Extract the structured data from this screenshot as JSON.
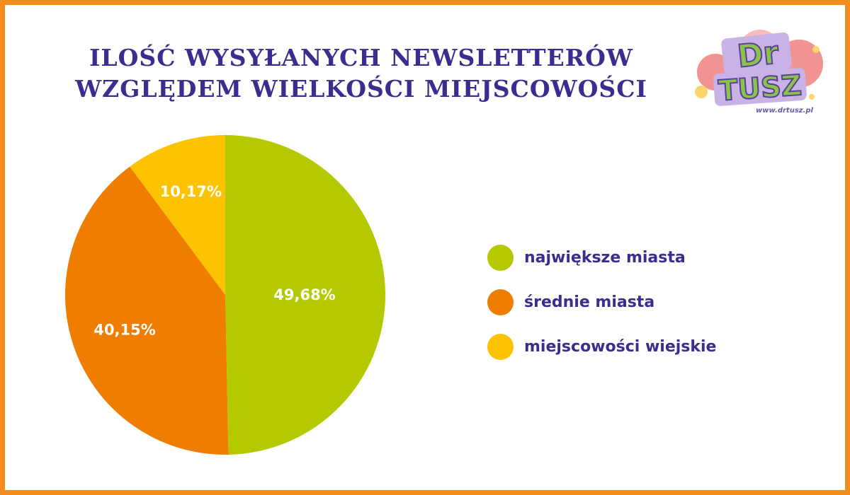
{
  "header": {
    "title_line1": "ILOŚĆ WYSYŁANYCH NEWSLETTERÓW",
    "title_line2": "WZGLĘDEM WIELKOŚCI MIEJSCOWOŚCI"
  },
  "logo": {
    "text_top": "Dr",
    "text_bottom": "TUSZ",
    "url": "www.drtusz.pl"
  },
  "colors": {
    "frame": "#f28c1e",
    "title": "#3b2d8f",
    "green": "#b5c900",
    "orange": "#ef7d00",
    "yellow": "#fdc300"
  },
  "chart_data": {
    "type": "pie",
    "title": "ILOŚĆ WYSYŁANYCH NEWSLETTERÓW WZGLĘDEM WIELKOŚCI MIEJSCOWOŚCI",
    "slices": [
      {
        "name": "największe miasta",
        "value": 49.68,
        "label": "49,68%",
        "color": "#b5c900"
      },
      {
        "name": "średnie miasta",
        "value": 40.15,
        "label": "40,15%",
        "color": "#ef7d00"
      },
      {
        "name": "miejscowości wiejskie",
        "value": 10.17,
        "label": "10,17%",
        "color": "#fdc300"
      }
    ],
    "legend_position": "right"
  }
}
